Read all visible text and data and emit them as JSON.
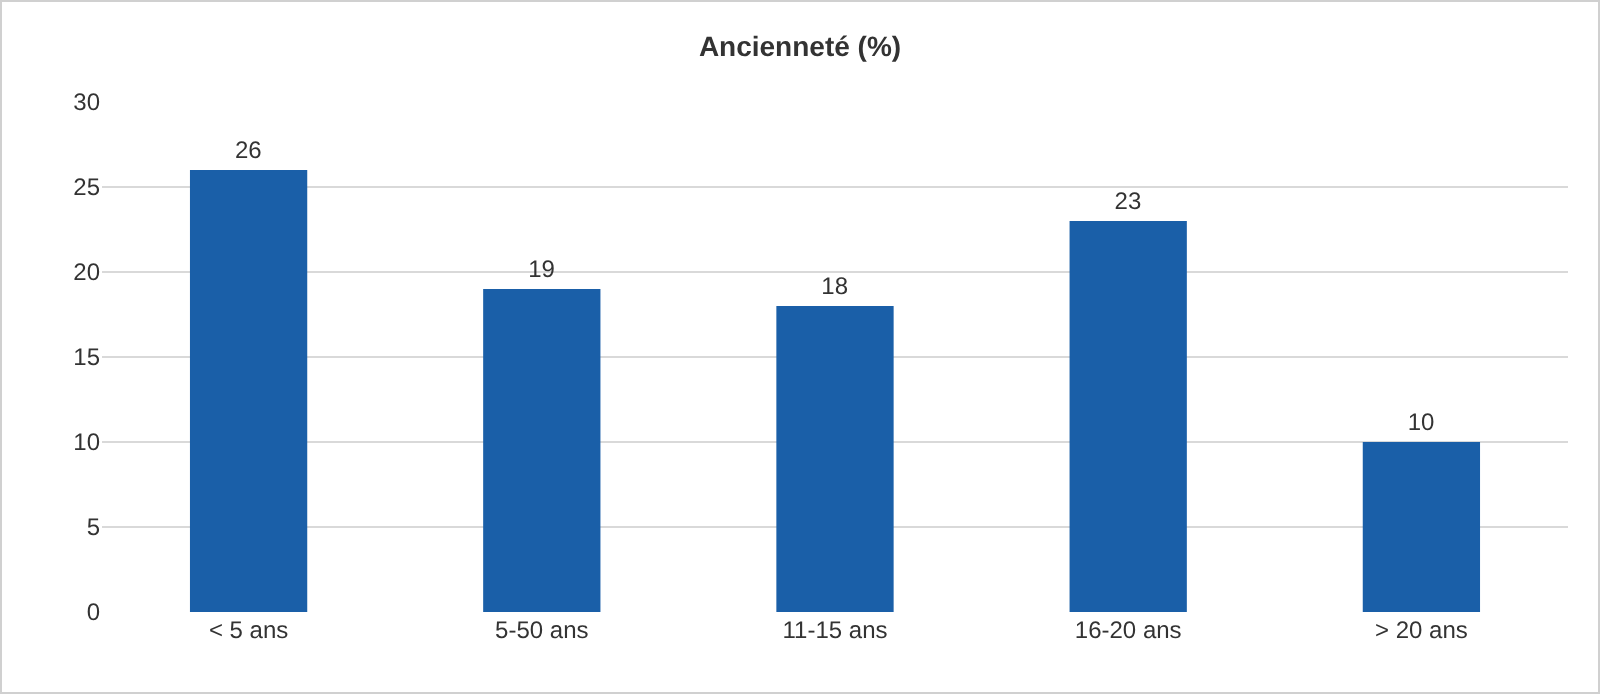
{
  "chart_data": {
    "type": "bar",
    "title": "Ancienneté (%)",
    "categories": [
      "< 5 ans",
      "5-50 ans",
      "11-15 ans",
      "16-20 ans",
      "> 20 ans"
    ],
    "values": [
      26,
      19,
      18,
      23,
      10
    ],
    "color": "#1a5fa8",
    "ylim": [
      0,
      30
    ],
    "yticks": [
      0,
      5,
      10,
      15,
      20,
      25,
      30
    ],
    "grid": "y",
    "data_labels": true
  }
}
